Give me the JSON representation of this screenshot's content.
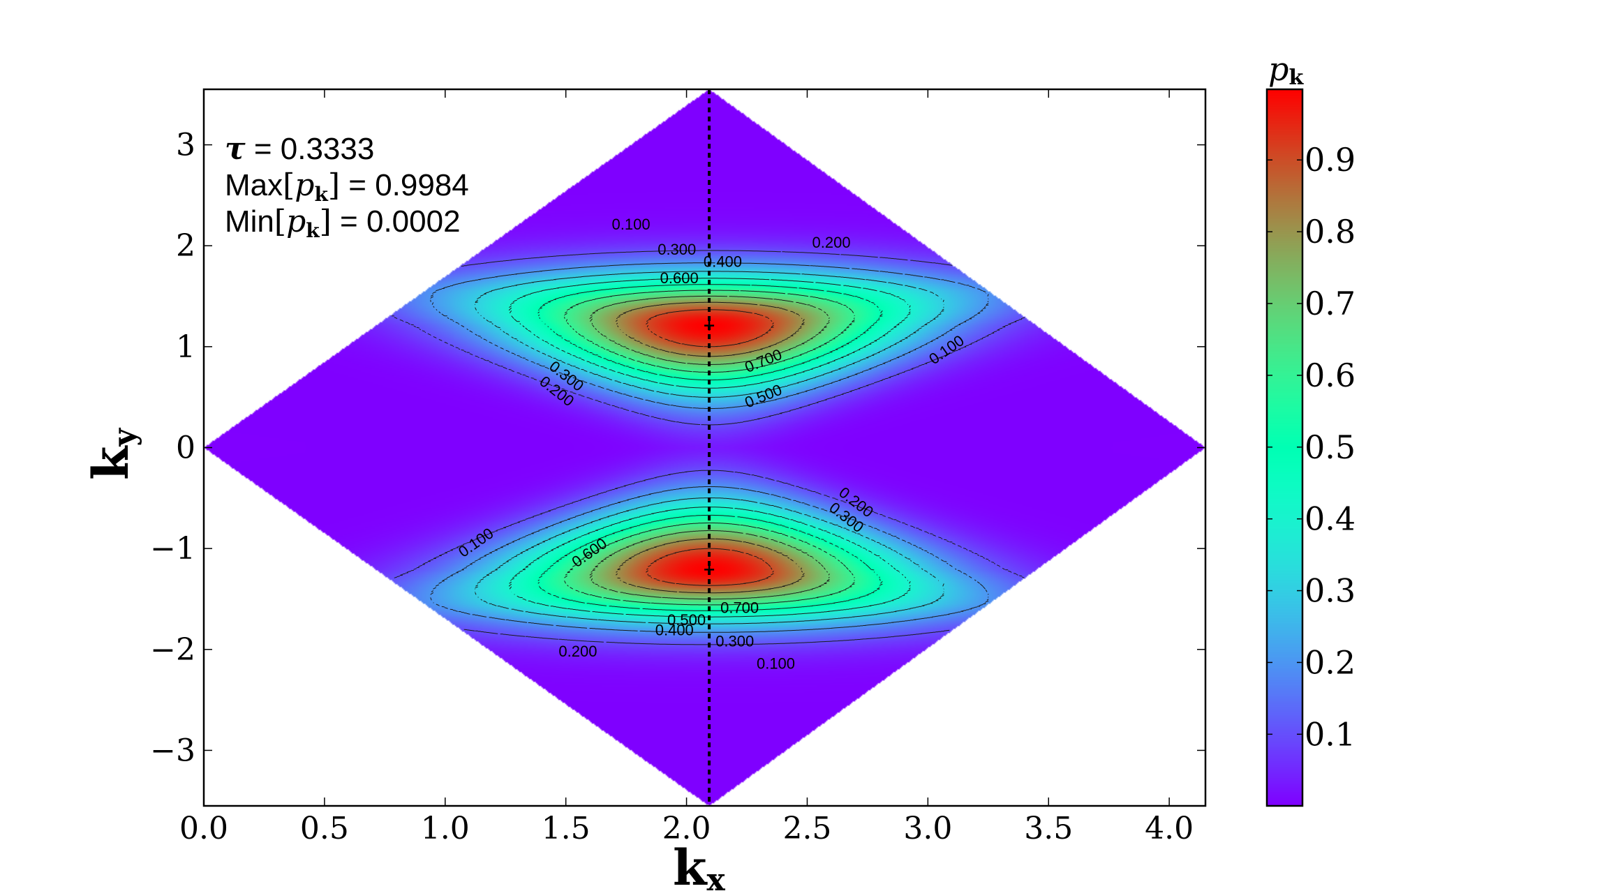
{
  "chart_data": {
    "type": "heatmap",
    "title": "",
    "xlabel": "k",
    "xlabel_sub": "x",
    "ylabel": "k",
    "ylabel_sub": "y",
    "xlim": [
      0,
      4.15
    ],
    "ylim": [
      -3.55,
      3.55
    ],
    "xticks": [
      0.0,
      0.5,
      1.0,
      1.5,
      2.0,
      2.5,
      3.0,
      3.5,
      4.0
    ],
    "xtick_labels": [
      "0.0",
      "0.5",
      "1.0",
      "1.5",
      "2.0",
      "2.5",
      "3.0",
      "3.5",
      "4.0"
    ],
    "yticks": [
      3,
      2,
      1,
      0,
      -1,
      -2,
      -3
    ],
    "ytick_labels": [
      "3",
      "2",
      "1",
      "0",
      "−1",
      "−2",
      "−3"
    ],
    "domain_vertices": [
      [
        0.0,
        0.0
      ],
      [
        2.094,
        3.55
      ],
      [
        4.15,
        0.0
      ],
      [
        2.094,
        -3.55
      ]
    ],
    "dashed_line_x": 2.094,
    "maxima": [
      [
        2.094,
        1.209
      ],
      [
        2.094,
        -1.209
      ]
    ],
    "annotations": {
      "tau_symbol": "τ",
      "tau_text": " = 0.3333",
      "max_prefix": "Max",
      "max_var": "p",
      "max_var_sub": "k",
      "max_value": " = 0.9984",
      "min_prefix": "Min",
      "min_var": "p",
      "min_var_sub": "k",
      "min_value": "  = 0.0002"
    },
    "contour_levels": [
      0.1,
      0.2,
      0.3,
      0.4,
      0.5,
      0.6,
      0.7,
      0.8,
      0.9
    ],
    "contour_labels": [
      {
        "text": "0.100",
        "x": 1.77,
        "y": 2.2,
        "rot": 0
      },
      {
        "text": "0.300",
        "x": 1.96,
        "y": 1.95,
        "rot": 0
      },
      {
        "text": "0.400",
        "x": 2.15,
        "y": 1.83,
        "rot": 0
      },
      {
        "text": "0.600",
        "x": 1.97,
        "y": 1.67,
        "rot": 0
      },
      {
        "text": "0.200",
        "x": 2.6,
        "y": 2.02,
        "rot": 0
      },
      {
        "text": "0.100",
        "x": 3.08,
        "y": 0.96,
        "rot": -35
      },
      {
        "text": "0.700",
        "x": 2.32,
        "y": 0.85,
        "rot": -22
      },
      {
        "text": "0.500",
        "x": 2.32,
        "y": 0.5,
        "rot": -22
      },
      {
        "text": "0.300",
        "x": 1.5,
        "y": 0.7,
        "rot": 38
      },
      {
        "text": "0.200",
        "x": 1.46,
        "y": 0.55,
        "rot": 38
      },
      {
        "text": "0.200",
        "x": 2.7,
        "y": -0.55,
        "rot": 38
      },
      {
        "text": "0.300",
        "x": 2.66,
        "y": -0.7,
        "rot": 38
      },
      {
        "text": "0.100",
        "x": 1.13,
        "y": -0.95,
        "rot": -35
      },
      {
        "text": "0.600",
        "x": 1.6,
        "y": -1.05,
        "rot": -35
      },
      {
        "text": "0.700",
        "x": 2.22,
        "y": -1.6,
        "rot": 0
      },
      {
        "text": "0.500",
        "x": 2.0,
        "y": -1.72,
        "rot": 0
      },
      {
        "text": "0.400",
        "x": 1.95,
        "y": -1.82,
        "rot": 0
      },
      {
        "text": "0.300",
        "x": 2.2,
        "y": -1.93,
        "rot": 0
      },
      {
        "text": "0.200",
        "x": 1.55,
        "y": -2.03,
        "rot": 0
      },
      {
        "text": "0.100",
        "x": 2.37,
        "y": -2.15,
        "rot": 0
      }
    ]
  },
  "colorbar": {
    "title_var": "p",
    "title_sub": "k",
    "range": [
      0.0002,
      0.9984
    ],
    "colormap": "rainbow",
    "ticks": [
      0.1,
      0.2,
      0.3,
      0.4,
      0.5,
      0.6,
      0.7,
      0.8,
      0.9
    ],
    "tick_labels": [
      "0.1",
      "0.2",
      "0.3",
      "0.4",
      "0.5",
      "0.6",
      "0.7",
      "0.8",
      "0.9"
    ]
  }
}
